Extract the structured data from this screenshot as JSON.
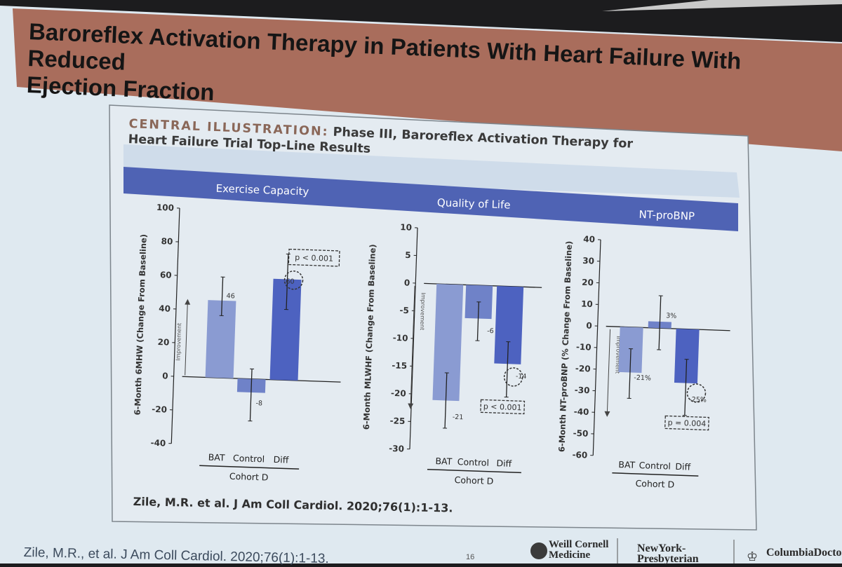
{
  "slide": {
    "title_line1": "Baroreflex Activation Therapy in Patients With Heart Failure With Reduced",
    "title_line2": "Ejection Fraction",
    "footer_citation": "Zile, M.R., et al. J Am Coll Cardiol. 2020;76(1):1-13.",
    "page_number": "16",
    "logos": {
      "weill_line1": "Weill Cornell",
      "weill_line2": "Medicine",
      "nyp_line1": "NewYork-",
      "nyp_line2": "Presbyterian",
      "columbia": "ColumbiaDoctors"
    }
  },
  "illustration": {
    "title_lead": "CENTRAL ILLUSTRATION:",
    "title_rest": "Phase III, Baroreflex Activation Therapy for",
    "title_line2": "Heart Failure Trial Top-Line Results",
    "citation": "Zile, M.R. et al. J Am Coll Cardiol. 2020;76(1):1-13."
  },
  "colors": {
    "band": "#4f63b4",
    "bar_light": "#8a9bd2",
    "bar_control": "#6f82c8",
    "bar_dark": "#4d62c0",
    "slide_bg": "#dfe9f0",
    "title_bar": "#a96d5c",
    "panel_bg": "#e4ebf1"
  },
  "chart_data": [
    {
      "type": "bar",
      "title": "Exercise Capacity",
      "ylabel": "6-Month 6MHW (Change From Baseline)",
      "ylim": [
        -40,
        100
      ],
      "yticks": [
        "100",
        "80",
        "60",
        "40",
        "20",
        "0",
        "-20",
        "-40"
      ],
      "categories": [
        "BAT",
        "Control",
        "Diff"
      ],
      "values": [
        46,
        -8,
        60
      ],
      "error_low": [
        37,
        -25,
        42
      ],
      "error_high": [
        60,
        6,
        75
      ],
      "value_labels": [
        "46",
        "-8",
        "60"
      ],
      "group_label": "Cohort D",
      "improvement_label": "Improvement",
      "improvement_direction": "up",
      "p_value": "p < 0.001"
    },
    {
      "type": "bar",
      "title": "Quality of Life",
      "ylabel": "6-Month MLWHF (Change From Baseline)",
      "ylim": [
        -30,
        10
      ],
      "yticks": [
        "10",
        "5",
        "0",
        "-5",
        "-10",
        "-15",
        "-20",
        "-25",
        "-30"
      ],
      "categories": [
        "BAT",
        "Control",
        "Diff"
      ],
      "values": [
        -21,
        -6,
        -14
      ],
      "error_low": [
        -26,
        -10,
        -20
      ],
      "error_high": [
        -16,
        -3,
        -10
      ],
      "value_labels": [
        "-21",
        "-6",
        "-14"
      ],
      "group_label": "Cohort D",
      "improvement_label": "Improvement",
      "improvement_direction": "down",
      "p_value": "p < 0.001"
    },
    {
      "type": "bar",
      "title": "NT-proBNP",
      "ylabel": "6-Month NT-proBNP (% Change From Baseline)",
      "ylim": [
        -60,
        40
      ],
      "yticks": [
        "40",
        "30",
        "20",
        "10",
        "0",
        "-10",
        "-20",
        "-30",
        "-40",
        "-50",
        "-60"
      ],
      "categories": [
        "BAT",
        "Control",
        "Diff"
      ],
      "values": [
        -21,
        3,
        -25
      ],
      "error_low": [
        -33,
        -10,
        -40
      ],
      "error_high": [
        -10,
        15,
        -14
      ],
      "value_labels": [
        "-21%",
        "3%",
        "-25%"
      ],
      "group_label": "Cohort D",
      "improvement_label": "Improvement",
      "improvement_direction": "down",
      "p_value": "p = 0.004"
    }
  ]
}
